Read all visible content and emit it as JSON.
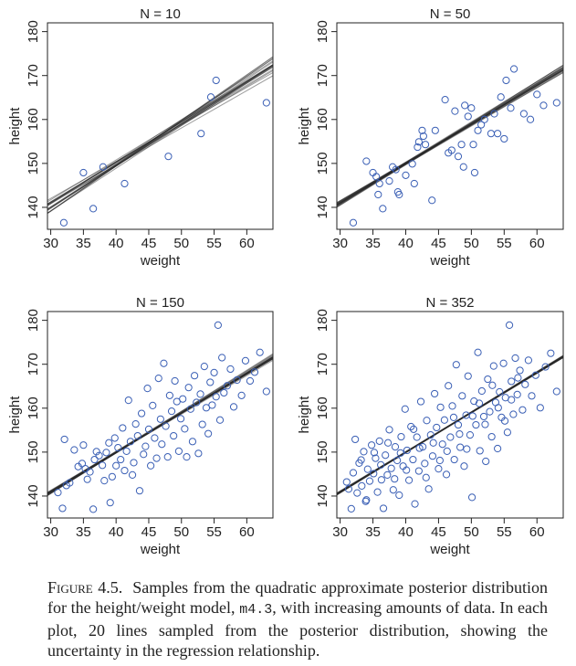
{
  "chart_data": [
    {
      "type": "scatter",
      "title": "N = 10",
      "xlabel": "weight",
      "ylabel": "height",
      "xlim": [
        29.5,
        64
      ],
      "ylim": [
        135,
        182
      ],
      "xticks": [
        30,
        35,
        40,
        45,
        50,
        55,
        60
      ],
      "yticks": [
        140,
        150,
        160,
        170,
        180
      ],
      "points": [
        [
          32,
          136.5
        ],
        [
          35,
          147.9
        ],
        [
          36.5,
          139.7
        ],
        [
          38,
          149.2
        ],
        [
          41.3,
          145.4
        ],
        [
          48,
          151.6
        ],
        [
          53,
          156.8
        ],
        [
          54.5,
          165.1
        ],
        [
          55.3,
          168.9
        ],
        [
          63,
          163.8
        ]
      ],
      "line_spread": 0.1,
      "line_center": [
        154.5,
        0.95
      ]
    },
    {
      "type": "scatter",
      "title": "N = 50",
      "xlabel": "weight",
      "ylabel": "height",
      "xlim": [
        29.5,
        64
      ],
      "ylim": [
        135,
        182
      ],
      "xticks": [
        30,
        35,
        40,
        45,
        50,
        55,
        60
      ],
      "yticks": [
        140,
        150,
        160,
        170,
        180
      ],
      "points": [
        [
          32,
          136.5
        ],
        [
          34,
          150.5
        ],
        [
          35,
          147.9
        ],
        [
          35.5,
          147
        ],
        [
          35.8,
          142.9
        ],
        [
          36,
          145.4
        ],
        [
          36.5,
          139.7
        ],
        [
          37.5,
          146
        ],
        [
          38,
          149.2
        ],
        [
          38.5,
          148.6
        ],
        [
          38.8,
          143.5
        ],
        [
          39,
          142.9
        ],
        [
          40,
          147.3
        ],
        [
          41,
          149.9
        ],
        [
          41.3,
          145.4
        ],
        [
          41.8,
          153.7
        ],
        [
          42,
          154.9
        ],
        [
          42.5,
          157.5
        ],
        [
          42.7,
          156.2
        ],
        [
          43,
          154.3
        ],
        [
          44,
          141.6
        ],
        [
          44.5,
          157.5
        ],
        [
          46,
          164.5
        ],
        [
          46.5,
          152.4
        ],
        [
          47,
          153
        ],
        [
          47.5,
          161.9
        ],
        [
          48,
          151.6
        ],
        [
          48.5,
          154.3
        ],
        [
          48.8,
          149.2
        ],
        [
          49,
          163.2
        ],
        [
          49.5,
          160.7
        ],
        [
          50,
          162.6
        ],
        [
          50.3,
          154.3
        ],
        [
          50.5,
          147.9
        ],
        [
          51,
          157.5
        ],
        [
          51.5,
          158.8
        ],
        [
          52,
          160
        ],
        [
          53,
          156.8
        ],
        [
          53.5,
          161.3
        ],
        [
          54,
          156.8
        ],
        [
          54.5,
          165.1
        ],
        [
          55,
          155.6
        ],
        [
          55.3,
          168.9
        ],
        [
          56,
          162.6
        ],
        [
          56.5,
          171.5
        ],
        [
          58,
          161.3
        ],
        [
          59,
          160
        ],
        [
          60,
          165.7
        ],
        [
          61,
          163.2
        ],
        [
          63,
          163.8
        ]
      ],
      "line_spread": 0.045,
      "line_center": [
        154.5,
        0.9
      ]
    },
    {
      "type": "scatter",
      "title": "N = 150",
      "xlabel": "weight",
      "ylabel": "height",
      "xlim": [
        29.5,
        64
      ],
      "ylim": [
        135,
        182
      ],
      "xticks": [
        30,
        35,
        40,
        45,
        50,
        55,
        60
      ],
      "yticks": [
        140,
        150,
        160,
        170,
        180
      ],
      "points": [
        [
          31.1,
          140.8
        ],
        [
          31.8,
          137.2
        ],
        [
          32.1,
          152.9
        ],
        [
          32.4,
          142.4
        ],
        [
          32.9,
          143
        ],
        [
          33.6,
          150.5
        ],
        [
          34.2,
          146.7
        ],
        [
          34.8,
          147.4
        ],
        [
          35,
          151.6
        ],
        [
          35.3,
          146.2
        ],
        [
          35.6,
          143.8
        ],
        [
          36,
          145.5
        ],
        [
          36.5,
          137
        ],
        [
          36.7,
          148.3
        ],
        [
          37,
          150.1
        ],
        [
          37.4,
          149.2
        ],
        [
          37.9,
          147
        ],
        [
          38.2,
          143.5
        ],
        [
          38.5,
          149.9
        ],
        [
          38.9,
          152.1
        ],
        [
          39.1,
          138.5
        ],
        [
          39.4,
          144.4
        ],
        [
          39.8,
          153.2
        ],
        [
          40,
          146.9
        ],
        [
          40.3,
          151
        ],
        [
          40.7,
          148.3
        ],
        [
          41,
          155.5
        ],
        [
          41.3,
          145.8
        ],
        [
          41.6,
          150.2
        ],
        [
          41.9,
          161.8
        ],
        [
          42.2,
          152.4
        ],
        [
          42.5,
          144.8
        ],
        [
          42.7,
          147.6
        ],
        [
          43,
          156.4
        ],
        [
          43.3,
          153.7
        ],
        [
          43.6,
          141.2
        ],
        [
          43.9,
          158.8
        ],
        [
          44.2,
          149.5
        ],
        [
          44.5,
          151.3
        ],
        [
          44.8,
          164.5
        ],
        [
          45,
          155.2
        ],
        [
          45.3,
          146.9
        ],
        [
          45.6,
          160.6
        ],
        [
          45.9,
          153.2
        ],
        [
          46.2,
          148.6
        ],
        [
          46.5,
          166.8
        ],
        [
          46.8,
          157.5
        ],
        [
          47,
          151.8
        ],
        [
          47.3,
          170.2
        ],
        [
          47.6,
          155.9
        ],
        [
          47.9,
          148.9
        ],
        [
          48.2,
          162.9
        ],
        [
          48.5,
          159.3
        ],
        [
          48.8,
          153.7
        ],
        [
          49,
          166.2
        ],
        [
          49.3,
          161.5
        ],
        [
          49.6,
          150.2
        ],
        [
          49.9,
          157.6
        ],
        [
          50.2,
          162.1
        ],
        [
          50.5,
          155.3
        ],
        [
          50.8,
          148.9
        ],
        [
          51.1,
          164.7
        ],
        [
          51.4,
          159.8
        ],
        [
          51.7,
          152.4
        ],
        [
          52,
          167.4
        ],
        [
          52.3,
          161.3
        ],
        [
          52.6,
          149.7
        ],
        [
          52.9,
          163.2
        ],
        [
          53.2,
          156.3
        ],
        [
          53.5,
          169.5
        ],
        [
          53.8,
          160.1
        ],
        [
          54.1,
          154.2
        ],
        [
          54.4,
          165.9
        ],
        [
          54.7,
          160.7
        ],
        [
          55,
          168.1
        ],
        [
          55.3,
          162.6
        ],
        [
          55.6,
          178.9
        ],
        [
          55.9,
          157.3
        ],
        [
          56.2,
          171.5
        ],
        [
          56.5,
          163.5
        ],
        [
          57,
          165.1
        ],
        [
          57.5,
          168.9
        ],
        [
          58,
          160.3
        ],
        [
          58.5,
          166.4
        ],
        [
          59.2,
          162.9
        ],
        [
          59.8,
          170.8
        ],
        [
          60.5,
          166.2
        ],
        [
          61.2,
          168.2
        ],
        [
          62,
          172.7
        ],
        [
          63,
          163.8
        ]
      ],
      "line_spread": 0.03,
      "line_center": [
        154.5,
        0.9
      ]
    },
    {
      "type": "scatter",
      "title": "N = 352",
      "xlabel": "weight",
      "ylabel": "height",
      "xlim": [
        29.5,
        64
      ],
      "ylim": [
        135,
        182
      ],
      "xticks": [
        30,
        35,
        40,
        45,
        50,
        55,
        60
      ],
      "yticks": [
        140,
        150,
        160,
        170,
        180
      ],
      "points": [
        [
          31,
          143.2
        ],
        [
          31.3,
          141.6
        ],
        [
          31.7,
          137.1
        ],
        [
          32,
          145.3
        ],
        [
          32.3,
          152.9
        ],
        [
          32.6,
          140.7
        ],
        [
          32.9,
          147.5
        ],
        [
          33.3,
          142.3
        ],
        [
          33.6,
          150.1
        ],
        [
          33.9,
          138.8
        ],
        [
          34.2,
          146.1
        ],
        [
          34.5,
          143.4
        ],
        [
          34.8,
          151.6
        ],
        [
          35.1,
          145.1
        ],
        [
          35.4,
          148.6
        ],
        [
          35.7,
          140.9
        ],
        [
          36,
          152.5
        ],
        [
          36.3,
          143.7
        ],
        [
          36.6,
          137.2
        ],
        [
          36.9,
          149.3
        ],
        [
          37.2,
          144.8
        ],
        [
          37.5,
          155.1
        ],
        [
          37.8,
          146.3
        ],
        [
          38.1,
          141.4
        ],
        [
          38.4,
          151.2
        ],
        [
          38.7,
          148.1
        ],
        [
          39,
          140.2
        ],
        [
          39.3,
          153.5
        ],
        [
          39.6,
          146.8
        ],
        [
          39.9,
          159.8
        ],
        [
          40.2,
          150.4
        ],
        [
          40.5,
          143.6
        ],
        [
          40.8,
          155.8
        ],
        [
          41.1,
          148.3
        ],
        [
          41.4,
          138.2
        ],
        [
          41.7,
          153.4
        ],
        [
          42,
          145.7
        ],
        [
          42.3,
          161.5
        ],
        [
          42.6,
          151.2
        ],
        [
          42.9,
          147.4
        ],
        [
          43.2,
          157.2
        ],
        [
          43.5,
          141.6
        ],
        [
          43.8,
          153.9
        ],
        [
          44.1,
          149.1
        ],
        [
          44.4,
          163.3
        ],
        [
          44.7,
          155.6
        ],
        [
          45,
          146.2
        ],
        [
          45.3,
          160.2
        ],
        [
          45.6,
          151.8
        ],
        [
          45.9,
          157.3
        ],
        [
          46.2,
          144.9
        ],
        [
          46.5,
          165.1
        ],
        [
          46.8,
          153.4
        ],
        [
          47.1,
          160.5
        ],
        [
          47.4,
          148.3
        ],
        [
          47.7,
          169.9
        ],
        [
          48,
          156.2
        ],
        [
          48.3,
          151.1
        ],
        [
          48.6,
          162.8
        ],
        [
          48.9,
          146.8
        ],
        [
          49.2,
          158.4
        ],
        [
          49.5,
          167.3
        ],
        [
          49.8,
          153.9
        ],
        [
          50.1,
          139.7
        ],
        [
          50.4,
          161.6
        ],
        [
          50.7,
          156.2
        ],
        [
          51,
          172.7
        ],
        [
          51.3,
          150.3
        ],
        [
          51.6,
          163.9
        ],
        [
          51.9,
          158.1
        ],
        [
          52.2,
          147.9
        ],
        [
          52.5,
          166.6
        ],
        [
          52.8,
          159.2
        ],
        [
          53.1,
          153.5
        ],
        [
          53.4,
          169.6
        ],
        [
          53.7,
          161.3
        ],
        [
          54,
          150.8
        ],
        [
          54.3,
          163.7
        ],
        [
          54.6,
          157.9
        ],
        [
          54.9,
          170.2
        ],
        [
          55.2,
          162.4
        ],
        [
          55.5,
          154.5
        ],
        [
          55.8,
          178.9
        ],
        [
          56.1,
          166.1
        ],
        [
          56.4,
          158.6
        ],
        [
          56.7,
          171.4
        ],
        [
          57,
          163.1
        ],
        [
          57.4,
          168.6
        ],
        [
          57.8,
          159.6
        ],
        [
          58.2,
          165.4
        ],
        [
          58.7,
          170.9
        ],
        [
          59.2,
          162.8
        ],
        [
          59.8,
          167.5
        ],
        [
          60.5,
          160.1
        ],
        [
          61.3,
          169.4
        ],
        [
          62.1,
          172.5
        ],
        [
          63,
          163.8
        ],
        [
          34,
          139.1
        ],
        [
          36.2,
          147.1
        ],
        [
          38.3,
          143.9
        ],
        [
          40.1,
          145.9
        ],
        [
          42.1,
          150.9
        ],
        [
          44.2,
          152.1
        ],
        [
          46.3,
          150.2
        ],
        [
          48.2,
          154.1
        ],
        [
          50.2,
          158.2
        ],
        [
          52.1,
          156.3
        ],
        [
          54.1,
          160.1
        ],
        [
          56.1,
          161.9
        ],
        [
          43.1,
          144.2
        ],
        [
          45.2,
          148.1
        ],
        [
          47.3,
          157.9
        ],
        [
          49.3,
          150.7
        ],
        [
          51.2,
          161.1
        ],
        [
          53.2,
          165.2
        ],
        [
          55.1,
          157.1
        ],
        [
          57.1,
          166.9
        ],
        [
          39.2,
          149.8
        ],
        [
          41.2,
          155.2
        ],
        [
          37.3,
          152.1
        ],
        [
          35.2,
          149.9
        ],
        [
          33.2,
          148.2
        ]
      ],
      "line_spread": 0.018,
      "line_center": [
        154.5,
        0.9
      ]
    }
  ],
  "caption": {
    "lead": "Figure 4.5.",
    "text_before_code": "Samples from the quadratic approximate posterior distribution for the height/weight model,",
    "code": "m4.3",
    "text_after_code": ", with increasing amounts of data. In each plot, 20 lines sampled from the posterior distribution, showing the uncertainty in the regression relationship."
  }
}
